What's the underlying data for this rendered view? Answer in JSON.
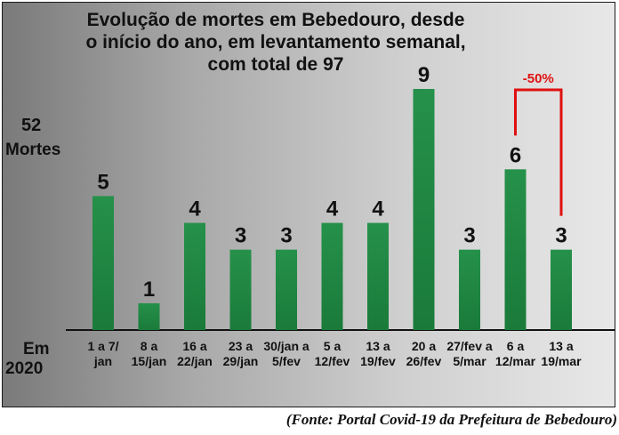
{
  "chart_data": {
    "type": "bar",
    "title_lines": [
      "Evolução de mortes em Bebedouro, desde",
      "o início do ano, em levantamento semanal,",
      "com total de 97"
    ],
    "ylabel_value": "52",
    "ylabel_unit": "Mortes",
    "xlabel_lines": [
      "Em",
      "2020"
    ],
    "categories": [
      [
        "1 a 7/",
        "jan"
      ],
      [
        "8 a",
        "15/jan"
      ],
      [
        "16 a",
        "22/jan"
      ],
      [
        "23 a",
        "29/jan"
      ],
      [
        "30/jan a",
        "5/fev"
      ],
      [
        "5 a",
        "12/fev"
      ],
      [
        "13 a",
        "19/fev"
      ],
      [
        "20 a",
        "26/fev"
      ],
      [
        "27/fev a",
        "5/mar"
      ],
      [
        "6 a",
        "12/mar"
      ],
      [
        "13 a",
        "19/mar"
      ]
    ],
    "values": [
      5,
      1,
      4,
      3,
      3,
      4,
      4,
      9,
      3,
      6,
      3
    ],
    "ylim": [
      0,
      9
    ],
    "bar_color": "#1a7a3a",
    "annotation": {
      "text": "-50%",
      "from_index": 9,
      "to_index": 10,
      "color": "#e01010"
    },
    "source": "(Fonte: Portal Covid-19 da Prefeitura de Bebedouro)"
  }
}
